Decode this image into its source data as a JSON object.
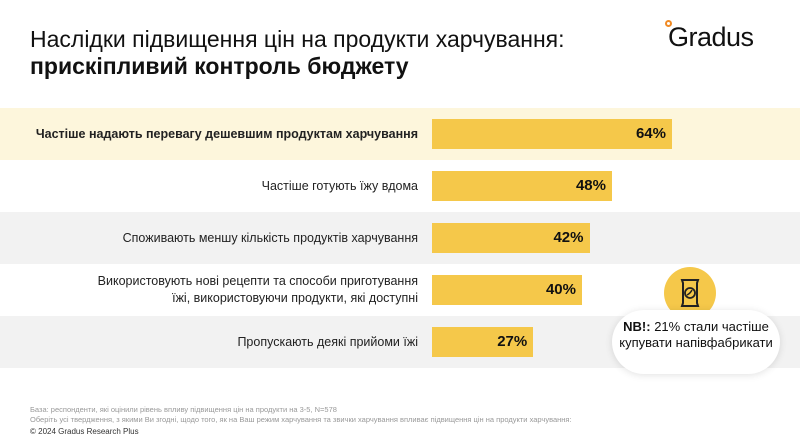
{
  "title_line1": "Наслідки підвищення цін на продукти харчування:",
  "title_line2": "прискіпливий контроль бюджету",
  "logo": "Gradus",
  "chart_data": {
    "type": "bar",
    "orientation": "horizontal",
    "categories": [
      "Частіше надають перевагу дешевшим продуктам харчування",
      "Частіше готують їжу вдома",
      "Споживають меншу кількість продуктів харчування",
      "Використовують нові рецепти та способи приготування їжі, використовуючи продукти, які доступні",
      "Пропускають деякі прийоми їжі"
    ],
    "values": [
      64,
      48,
      42,
      40,
      27
    ],
    "value_labels": [
      "64%",
      "48%",
      "42%",
      "40%",
      "27%"
    ],
    "xlim": [
      0,
      100
    ],
    "bar_color": "#f5c84a",
    "highlight_row_color": "#fdf6dc",
    "alt_row_color": "#f2f2f2"
  },
  "note": {
    "bold": "NB!:",
    "text": " 21% стали частіше купувати напівфабрикати",
    "icon": "snack-bag-icon"
  },
  "footnote1": "База: респонденти, які оцінили рівень впливу підвищення цін на продукти на 3-5, N=578",
  "footnote2": "Оберіть усі твердження, з якими Ви згодні, щодо того, як на Ваш режим харчування та звички харчування впливає підвищення цін на продукти харчування:",
  "copyright": "© 2024 Gradus Research Plus"
}
